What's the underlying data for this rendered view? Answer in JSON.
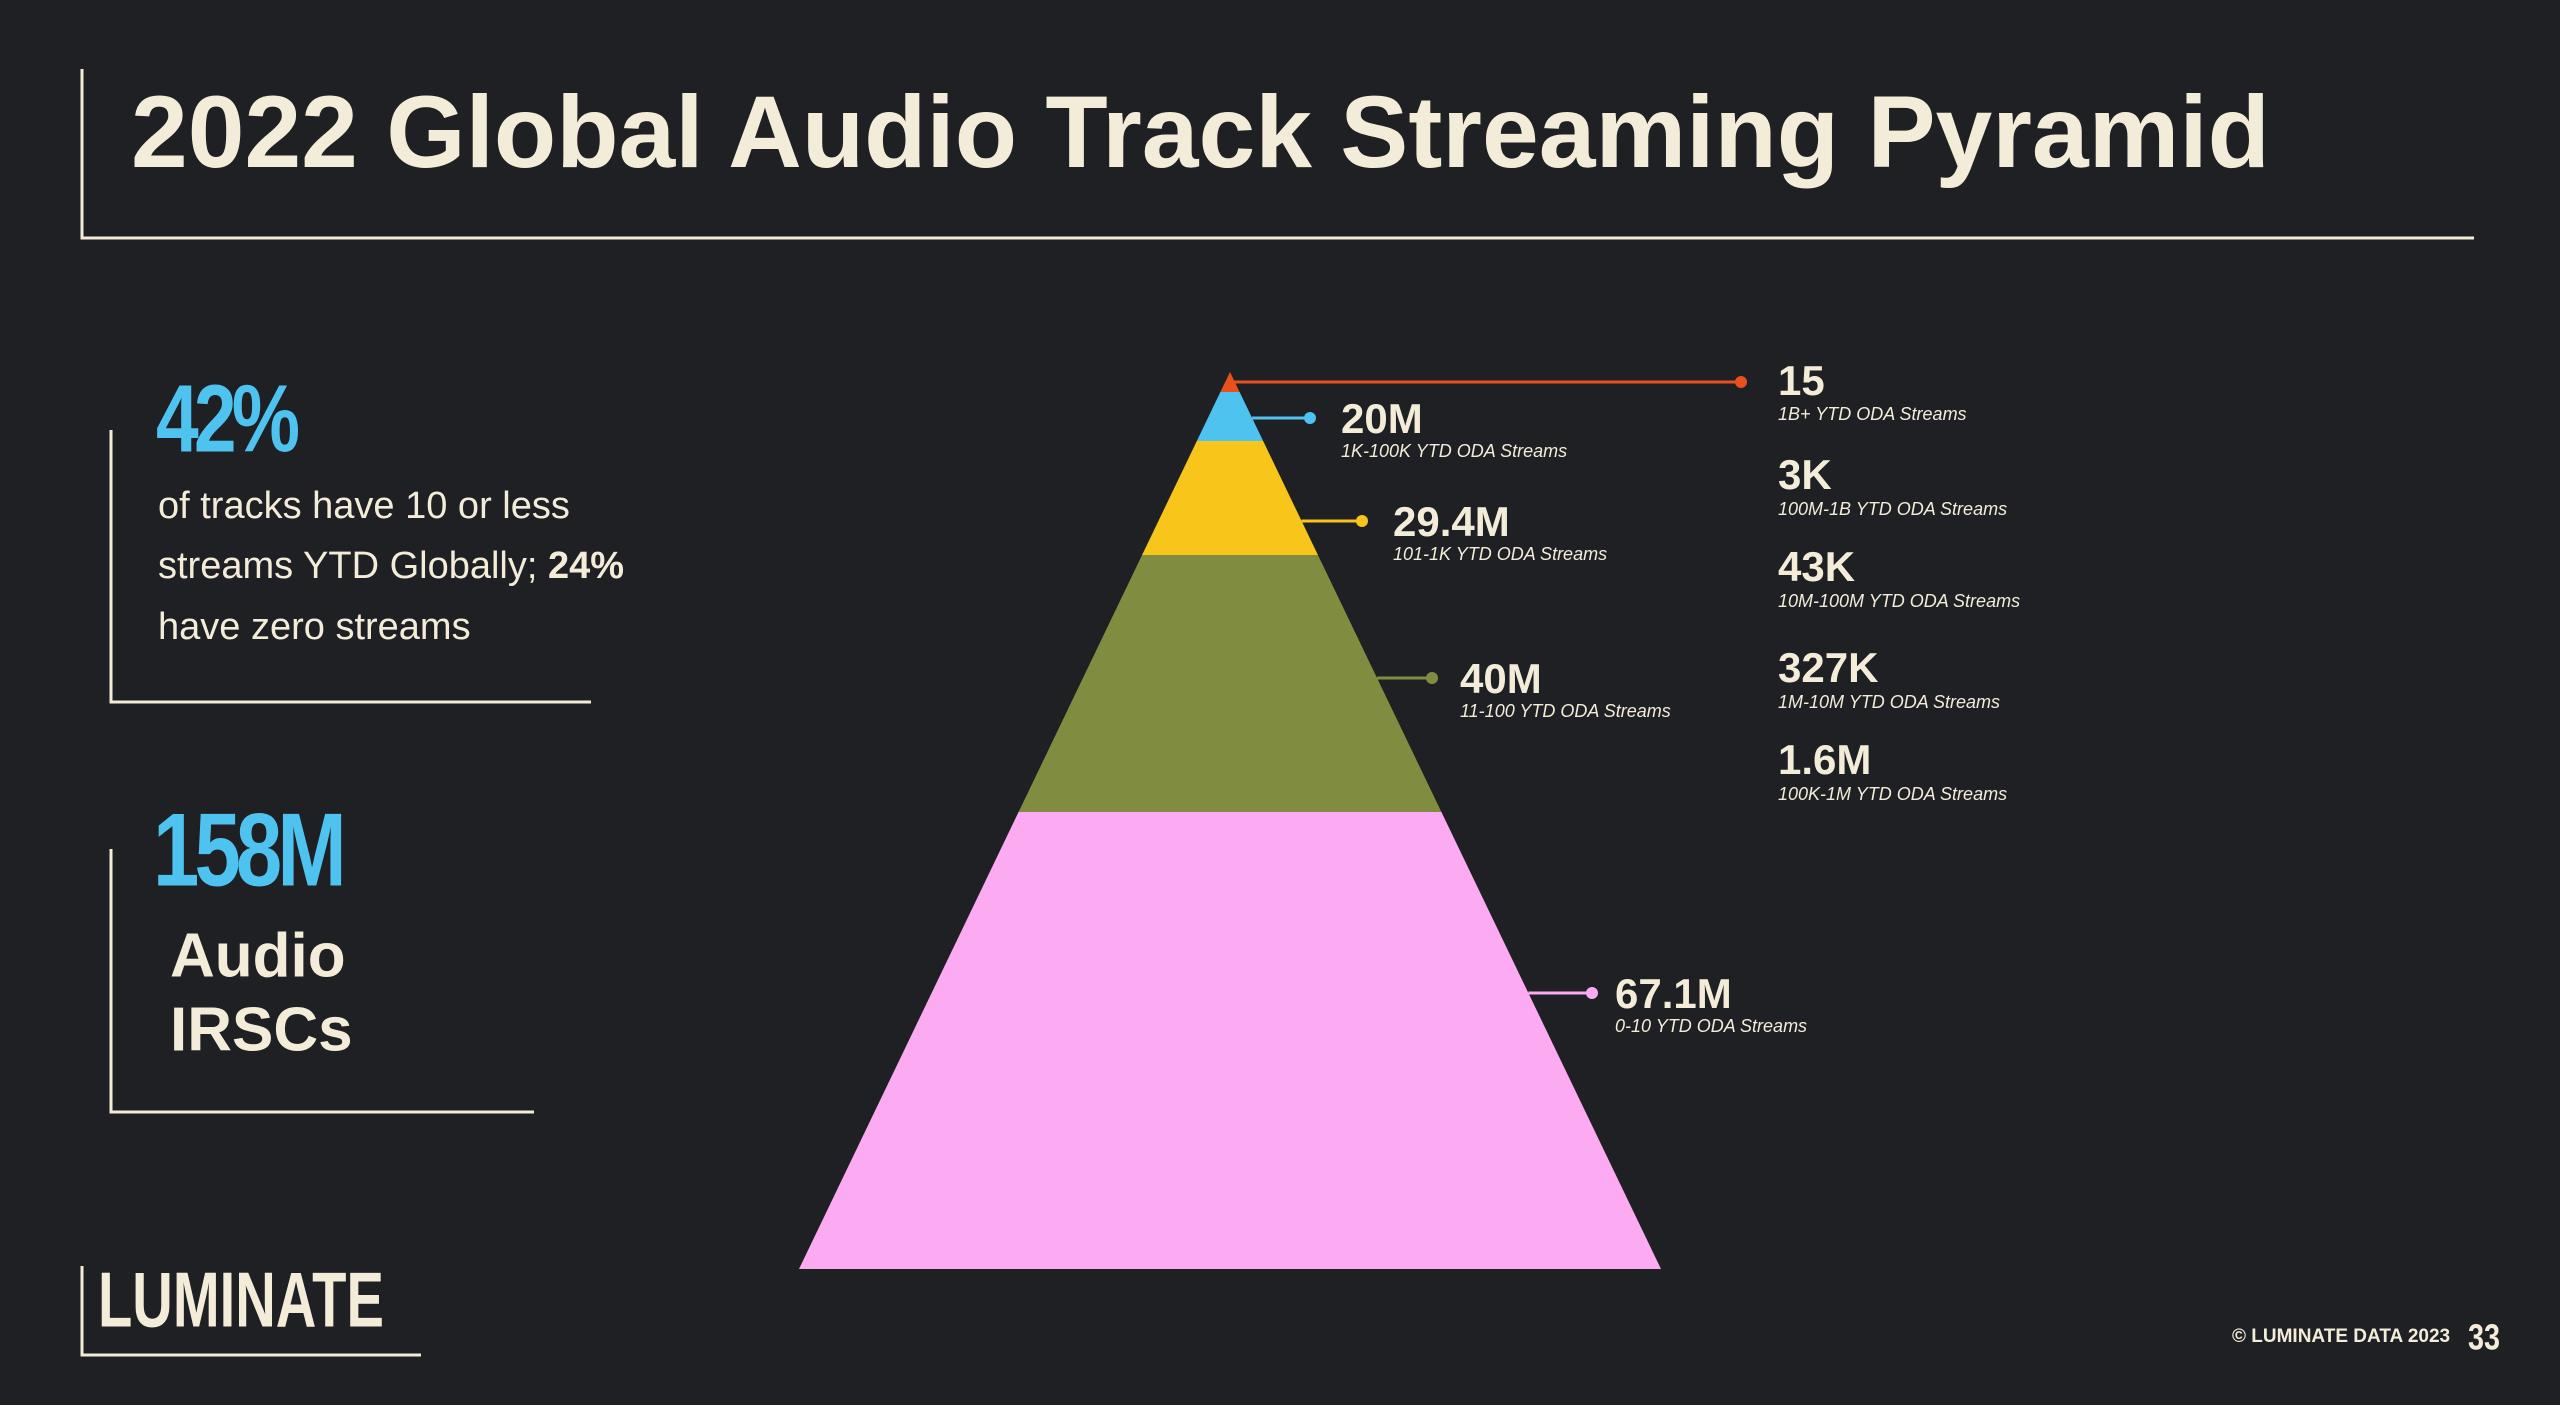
{
  "title": "2022 Global Audio Track Streaming Pyramid",
  "stats": [
    {
      "value": "42%",
      "lines": [
        "of tracks have 10 or less",
        "streams YTD Globally;",
        "24%",
        "have zero streams"
      ]
    },
    {
      "value": "158M",
      "lines": [
        "Audio",
        "IRSCs"
      ]
    }
  ],
  "pyramid": {
    "layers": [
      {
        "value": "15",
        "label": "1B+ YTD ODA Streams",
        "color": "#e8501e"
      },
      {
        "value": "20M",
        "label": "1K-100K YTD ODA Streams",
        "color": "#4fc3f0"
      },
      {
        "value": "29.4M",
        "label": "101-1K YTD ODA Streams",
        "color": "#f8c61a"
      },
      {
        "value": "40M",
        "label": "11-100 YTD ODA Streams",
        "color": "#808c40"
      },
      {
        "value": "67.1M",
        "label": "0-10 YTD ODA Streams",
        "color": "#fcaaf2"
      }
    ],
    "side_list": [
      {
        "value": "3K",
        "label": "100M-1B YTD ODA Streams"
      },
      {
        "value": "43K",
        "label": "10M-100M YTD ODA Streams"
      },
      {
        "value": "327K",
        "label": "1M-10M YTD ODA Streams"
      },
      {
        "value": "1.6M",
        "label": "100K-1M YTD ODA Streams"
      }
    ]
  },
  "footer": {
    "logo": "LUMINATE",
    "copyright": "© LUMINATE DATA 2023",
    "page": "33"
  }
}
